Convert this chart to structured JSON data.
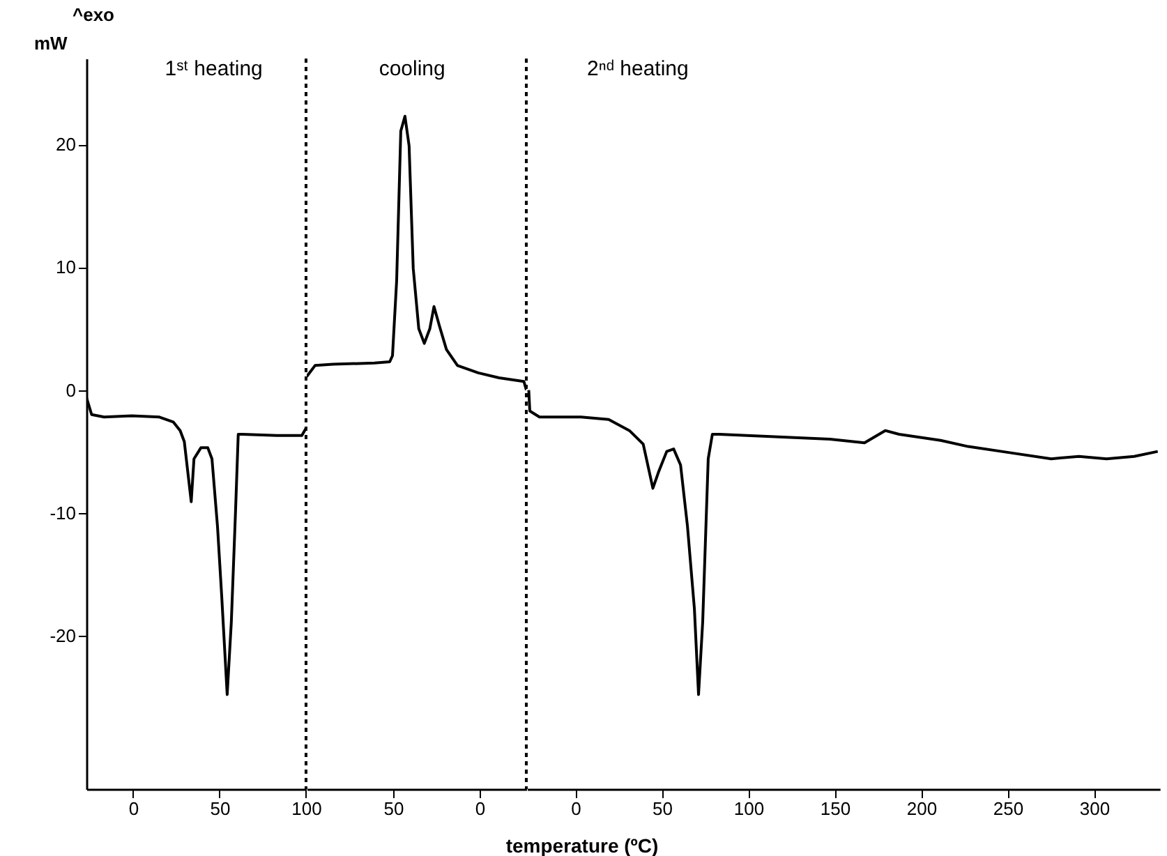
{
  "chart_data": [
    {
      "type": "line",
      "ylabel": "mW",
      "annotations": [
        "^exo",
        "1ˢᵗ heating"
      ],
      "xlim": [
        -27,
        100
      ],
      "ylim": [
        -32.5,
        27
      ],
      "xticks": [
        0,
        50,
        100
      ],
      "yticks": [
        -20,
        -10,
        0,
        10,
        20
      ],
      "ref_lines": [
        {
          "axis": "x",
          "value": 100,
          "line_style": "dotted",
          "color": "#000000"
        }
      ],
      "series": [
        {
          "color": "#000000",
          "x": [
            -27,
            -24,
            -16.8,
            -0.8,
            15.2,
            23.2,
            27.2,
            29.6,
            33.6,
            35.2,
            39.2,
            43.2,
            45.6,
            48.8,
            51.2,
            54.4,
            56.8,
            59.2,
            60.8,
            63.2,
            83.2,
            97.6,
            100
          ],
          "values": [
            -0.6,
            -2.0,
            -2.2,
            -2.1,
            -2.2,
            -2.6,
            -3.3,
            -4.2,
            -9.1,
            -5.6,
            -4.7,
            -4.7,
            -5.6,
            -11.1,
            -16.7,
            -24.8,
            -18.9,
            -10,
            -3.6,
            -3.6,
            -3.7,
            -3.7,
            -3.1
          ]
        }
      ]
    },
    {
      "type": "line",
      "tick_labels": "x",
      "annotations": [
        "cooling"
      ],
      "xlim": [
        100,
        -27
      ],
      "ylim": [
        -32.5,
        27
      ],
      "xticks": [
        50,
        0
      ],
      "ref_lines": [
        {
          "axis": "x",
          "value": -27,
          "line_style": "dotted",
          "color": "#000000"
        }
      ],
      "series": [
        {
          "color": "#000000",
          "x": [
            100,
            95.2,
            84.8,
            60.8,
            52,
            50.4,
            48,
            45.6,
            43.2,
            40.8,
            38.4,
            35.2,
            32,
            28.8,
            26.4,
            23.2,
            19.2,
            12.8,
            0.8,
            -11.2,
            -25.6,
            -27
          ],
          "values": [
            1.1,
            2.0,
            2.1,
            2.2,
            2.3,
            2.8,
            8.9,
            21.1,
            22.3,
            19.9,
            9.9,
            5.0,
            3.8,
            5.0,
            6.8,
            5.2,
            3.3,
            2.0,
            1.4,
            1.0,
            0.7,
            0
          ]
        }
      ]
    },
    {
      "type": "line",
      "tick_labels": "x",
      "xlabel": "temperature (ºC)",
      "annotations": [
        "2ⁿᵈ heating"
      ],
      "xlim": [
        -28,
        338
      ],
      "ylim": [
        -32.5,
        27
      ],
      "xticks": [
        0,
        50,
        100,
        150,
        200,
        250,
        300
      ],
      "series": [
        {
          "color": "#000000",
          "x": [
            -27,
            -26.4,
            -20.8,
            3.2,
            19.2,
            31.2,
            39.2,
            44.8,
            48,
            52.8,
            56.8,
            60.8,
            64.8,
            68.8,
            71.2,
            73.6,
            76.8,
            79.2,
            83.2,
            115.2,
            147.2,
            167.2,
            179.2,
            187.2,
            211.2,
            227.2,
            251.2,
            275.2,
            291.2,
            307.2,
            323.2,
            336.8
          ],
          "values": [
            0,
            -1.7,
            -2.2,
            -2.2,
            -2.4,
            -3.3,
            -4.4,
            -8.0,
            -6.7,
            -5,
            -4.8,
            -6.1,
            -11.1,
            -17.8,
            -24.8,
            -18.9,
            -5.6,
            -3.6,
            -3.6,
            -3.8,
            -4.0,
            -4.3,
            -3.3,
            -3.6,
            -4.1,
            -4.6,
            -5.1,
            -5.6,
            -5.4,
            -5.6,
            -5.4,
            -5.0
          ]
        }
      ]
    }
  ]
}
